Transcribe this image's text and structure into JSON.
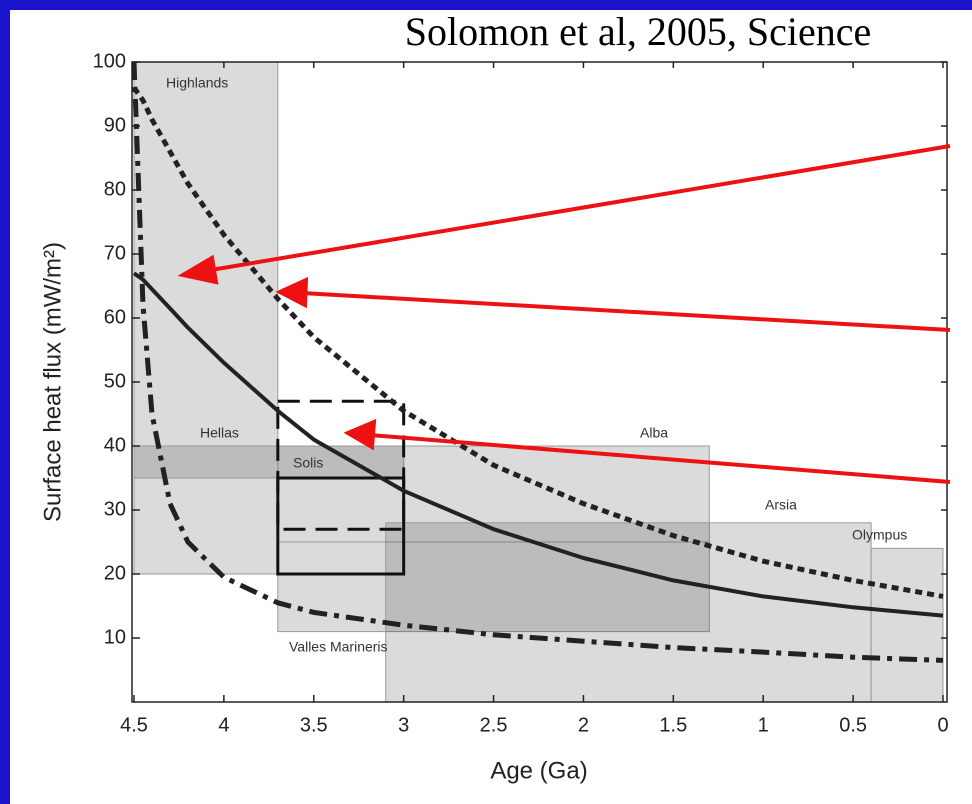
{
  "chart_data": {
    "type": "line",
    "title": "Solomon et al, 2005, Science",
    "xlabel": "Age (Ga)",
    "ylabel": "Surface heat flux (mW/m²)",
    "xlim": [
      4.5,
      0
    ],
    "ylim": [
      0,
      100
    ],
    "xticks": [
      4.5,
      4,
      3.5,
      3,
      2.5,
      2,
      1.5,
      1,
      0.5,
      0
    ],
    "yticks": [
      10,
      20,
      30,
      40,
      50,
      60,
      70,
      80,
      90,
      100
    ],
    "x": [
      4.5,
      4.45,
      4.4,
      4.3,
      4.2,
      4.0,
      3.7,
      3.5,
      3.0,
      2.5,
      2.0,
      1.5,
      1.0,
      0.5,
      0
    ],
    "series": [
      {
        "color": "#222222",
        "style": "dotted",
        "values": [
          96,
          94,
          91,
          86,
          81,
          73,
          63,
          57,
          45.5,
          37,
          31,
          26,
          22,
          19,
          16.5
        ]
      },
      {
        "color": "#222222",
        "style": "solid",
        "values": [
          67,
          66,
          64.5,
          61.5,
          58.5,
          53,
          45.5,
          41,
          33,
          27,
          22.5,
          19,
          16.5,
          14.8,
          13.5
        ]
      },
      {
        "color": "#222222",
        "style": "dashdot",
        "values": [
          100,
          62,
          45,
          31,
          25,
          19.5,
          15.5,
          14,
          12,
          10.5,
          9.5,
          8.5,
          7.8,
          7,
          6.5
        ]
      }
    ],
    "regions": [
      {
        "name": "Highlands",
        "age": [
          4.5,
          3.7
        ],
        "flux": [
          20,
          100
        ]
      },
      {
        "name": "Hellas",
        "age": [
          4.5,
          3.0
        ],
        "flux": [
          35,
          40
        ]
      },
      {
        "name": "Solis",
        "age": [
          3.7,
          3.0
        ],
        "flux": [
          25,
          40
        ]
      },
      {
        "name": "Alba",
        "age": [
          3.0,
          1.3
        ],
        "flux": [
          25,
          40
        ]
      },
      {
        "name": "Valles Marineris",
        "age": [
          3.7,
          1.3
        ],
        "flux": [
          11,
          25
        ]
      },
      {
        "name": "Arsia",
        "age": [
          3.1,
          0.4
        ],
        "flux": [
          0,
          28
        ]
      },
      {
        "name": "Olympus",
        "age": [
          0.4,
          0
        ],
        "flux": [
          0,
          24
        ]
      }
    ],
    "boxes": [
      {
        "style": "dashed",
        "age": [
          3.7,
          3.0
        ],
        "flux": [
          27,
          47
        ]
      },
      {
        "style": "solid",
        "age": [
          3.7,
          3.0
        ],
        "flux": [
          20,
          35
        ]
      }
    ]
  }
}
